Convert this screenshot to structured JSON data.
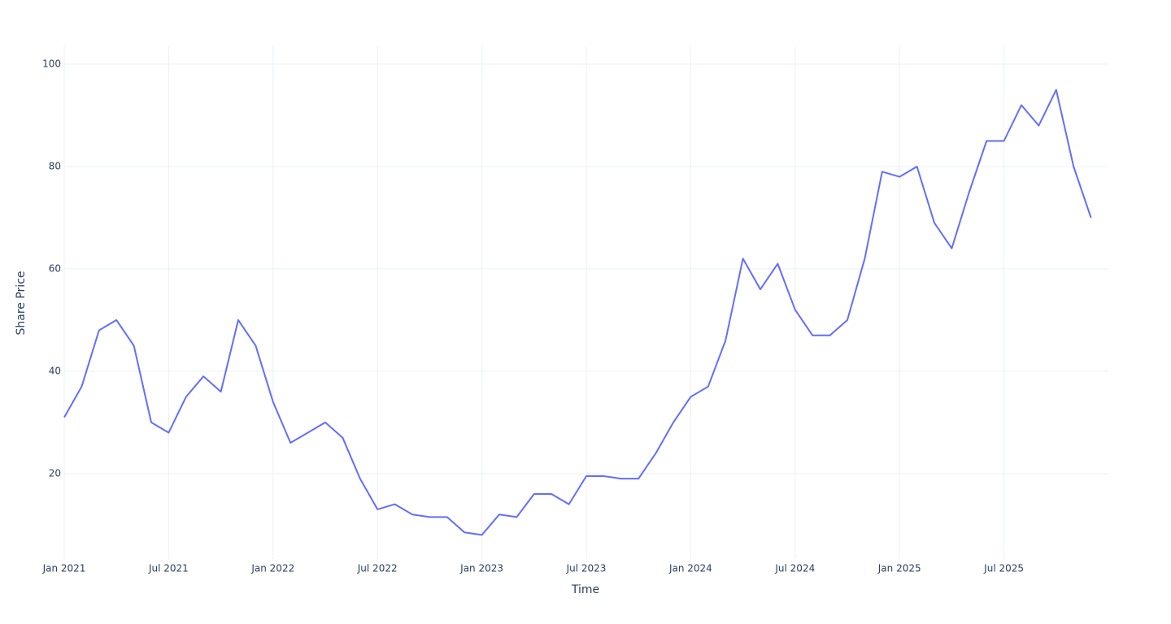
{
  "chart_data": {
    "type": "line",
    "x_label": "Time",
    "y_label": "Share Price",
    "x": [
      "2021-01",
      "2021-02",
      "2021-03",
      "2021-04",
      "2021-05",
      "2021-06",
      "2021-07",
      "2021-08",
      "2021-09",
      "2021-10",
      "2021-11",
      "2021-12",
      "2022-01",
      "2022-02",
      "2022-03",
      "2022-04",
      "2022-05",
      "2022-06",
      "2022-07",
      "2022-08",
      "2022-09",
      "2022-10",
      "2022-11",
      "2022-12",
      "2023-01",
      "2023-02",
      "2023-03",
      "2023-04",
      "2023-05",
      "2023-06",
      "2023-07",
      "2023-08",
      "2023-09",
      "2023-10",
      "2023-11",
      "2023-12",
      "2024-01",
      "2024-02",
      "2024-03",
      "2024-04",
      "2024-05",
      "2024-06",
      "2024-07",
      "2024-08",
      "2024-09",
      "2024-10",
      "2024-11",
      "2024-12",
      "2025-01",
      "2025-02",
      "2025-03",
      "2025-04",
      "2025-05",
      "2025-06",
      "2025-07",
      "2025-08",
      "2025-09",
      "2025-10",
      "2025-11",
      "2025-12"
    ],
    "values": [
      31,
      37,
      48,
      50,
      45,
      30,
      28,
      35,
      39,
      36,
      50,
      45,
      34,
      26,
      28,
      30,
      27,
      19,
      13,
      14,
      12,
      11.5,
      11.5,
      8.5,
      8,
      12,
      11.5,
      16,
      16,
      14,
      19.5,
      19.5,
      19,
      19,
      24,
      30,
      35,
      37,
      46,
      62,
      56,
      61,
      52,
      47,
      47,
      50,
      62,
      79,
      78,
      80,
      69,
      64,
      75,
      85,
      85,
      92,
      88,
      95,
      80,
      70
    ],
    "color": "#636efa",
    "xlim": [
      "2021-01",
      "2026-01"
    ],
    "xticks": [
      {
        "value": "2021-01",
        "label": "Jan 2021"
      },
      {
        "value": "2021-07",
        "label": "Jul 2021"
      },
      {
        "value": "2022-01",
        "label": "Jan 2022"
      },
      {
        "value": "2022-07",
        "label": "Jul 2022"
      },
      {
        "value": "2023-01",
        "label": "Jan 2023"
      },
      {
        "value": "2023-07",
        "label": "Jul 2023"
      },
      {
        "value": "2024-01",
        "label": "Jan 2024"
      },
      {
        "value": "2024-07",
        "label": "Jul 2024"
      },
      {
        "value": "2025-01",
        "label": "Jan 2025"
      },
      {
        "value": "2025-07",
        "label": "Jul 2025"
      }
    ],
    "ylim": [
      3.3,
      103.5
    ],
    "yticks": [
      20,
      40,
      60,
      80,
      100
    ],
    "grid": true
  }
}
